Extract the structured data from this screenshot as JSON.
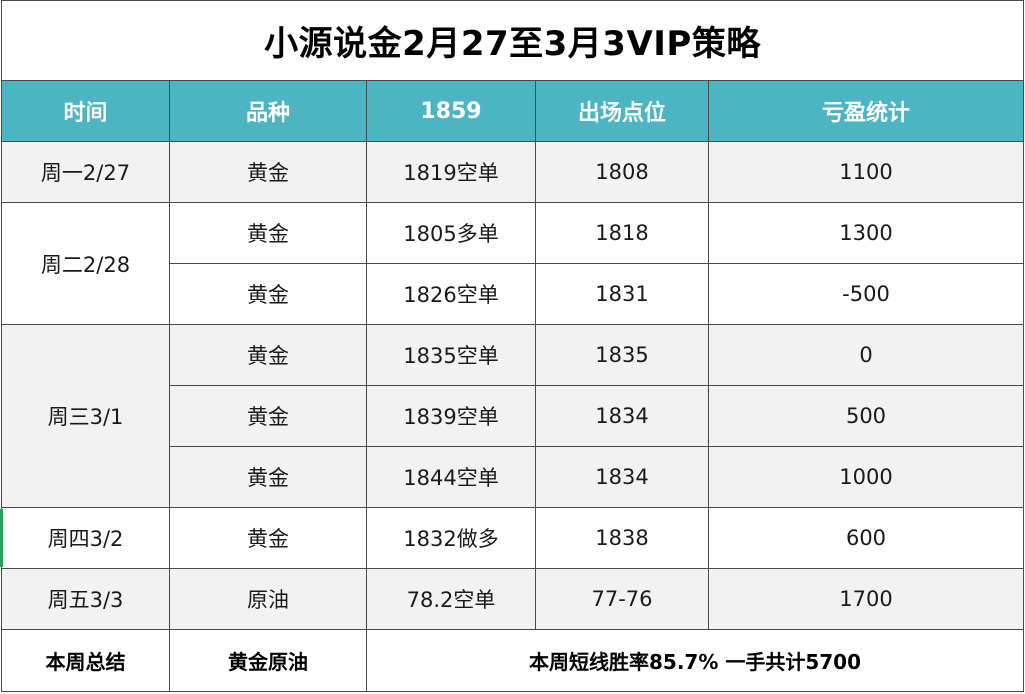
{
  "title": "小源说金2月27至3月3VIP策略",
  "headers": [
    "时间",
    "品种",
    "1859",
    "出场点位",
    "亏盈统计"
  ],
  "days": [
    "周一2/27",
    "周二2/28",
    "周三3/1",
    "周四3/2",
    "周五3/3"
  ],
  "rows": [
    {
      "variety": "黄金",
      "entry": "1819空单",
      "exit": "1808",
      "pnl": "1100"
    },
    {
      "variety": "黄金",
      "entry": "1805多单",
      "exit": "1818",
      "pnl": "1300"
    },
    {
      "variety": "黄金",
      "entry": "1826空单",
      "exit": "1831",
      "pnl": "-500"
    },
    {
      "variety": "黄金",
      "entry": "1835空单",
      "exit": "1835",
      "pnl": "0"
    },
    {
      "variety": "黄金",
      "entry": "1839空单",
      "exit": "1834",
      "pnl": "500"
    },
    {
      "variety": "黄金",
      "entry": "1844空单",
      "exit": "1834",
      "pnl": "1000"
    },
    {
      "variety": "黄金",
      "entry": "1832做多",
      "exit": "1838",
      "pnl": "600"
    },
    {
      "variety": "原油",
      "entry": "78.2空单",
      "exit": "77-76",
      "pnl": "1700"
    }
  ],
  "summary": {
    "label": "本周总结",
    "variety": "黄金原油",
    "result": "本周短线胜率85.7%  一手共计5700"
  },
  "colors": {
    "header_bg": "#4cb5c4",
    "header_text": "#ffffff",
    "stripe_gray": "#f2f2f2",
    "marker_green": "#2e9e5b"
  }
}
